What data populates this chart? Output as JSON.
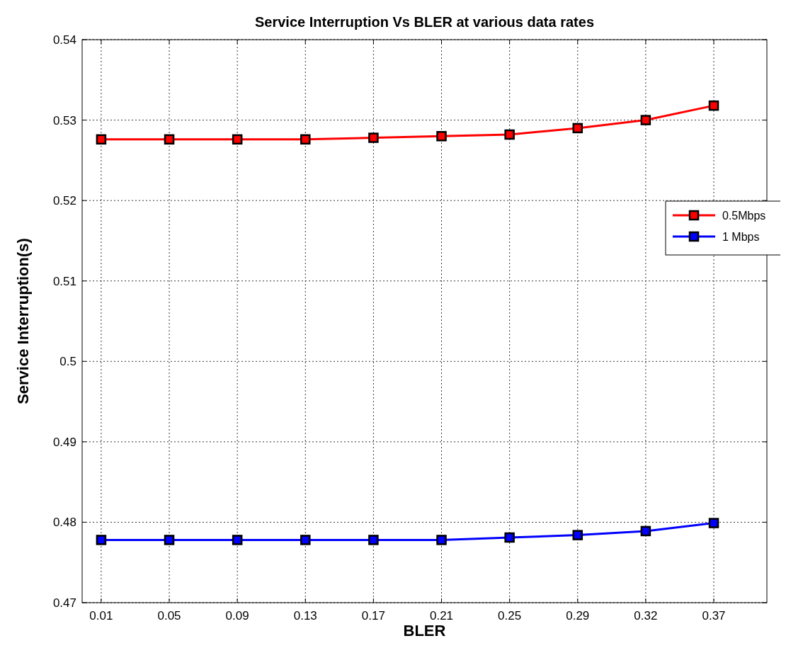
{
  "chart_data": {
    "type": "line",
    "title": "Service Interruption Vs BLER at various data rates",
    "xlabel": "BLER",
    "ylabel": "Service Interruption(s)",
    "categories": [
      "0.01",
      "0.05",
      "0.09",
      "0.13",
      "0.17",
      "0.21",
      "0.25",
      "0.29",
      "0.32",
      "0.37"
    ],
    "series": [
      {
        "name": "0.5Mbps",
        "color": "#ff0000",
        "values": [
          0.5276,
          0.5276,
          0.5276,
          0.5276,
          0.5278,
          0.528,
          0.5282,
          0.529,
          0.53,
          0.5318
        ]
      },
      {
        "name": "1 Mbps",
        "color": "#0000ff",
        "values": [
          0.4778,
          0.4778,
          0.4778,
          0.4778,
          0.4778,
          0.4778,
          0.4781,
          0.4784,
          0.4789,
          0.4799
        ]
      }
    ],
    "ylim": [
      0.47,
      0.54
    ],
    "yticks": [
      0.47,
      0.48,
      0.49,
      0.5,
      0.51,
      0.52,
      0.53,
      0.54
    ],
    "grid": true,
    "legend": "right",
    "marker": "square",
    "line_style": "solid"
  }
}
